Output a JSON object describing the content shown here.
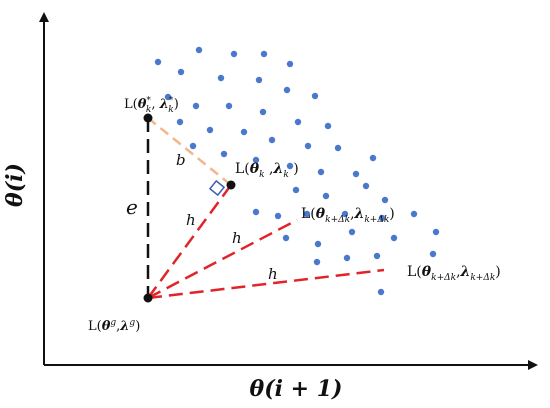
{
  "figure": {
    "y_axis_label": "θ(i)",
    "x_axis_label": "θ(i + 1)"
  },
  "labels": {
    "point_star": "L(θ*k, λ*k)",
    "point_current": "L(θk , λk )",
    "point_global": "L(θg, λg)",
    "point_next_inner": "L(θk+Δk, λk+Δk)",
    "point_next_outer": "L(θk+Δk, λk+Δk)",
    "b": "b",
    "e": "e",
    "h": "h"
  },
  "colors": {
    "dot": "#4a78cc",
    "red_dash": "#e0242a",
    "orange_dash": "#f2b68c",
    "black": "#111111"
  }
}
